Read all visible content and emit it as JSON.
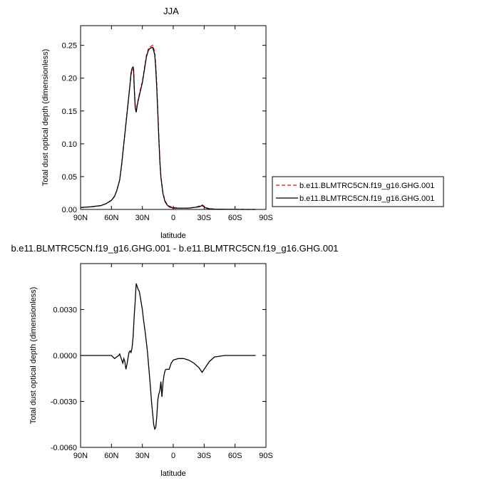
{
  "chart_data": [
    {
      "type": "line",
      "title": "JJA",
      "xlabel": "latitude",
      "ylabel": "Total dust optical depth (dimensionless)",
      "xlim": [
        90,
        -90
      ],
      "ylim": [
        0,
        0.28
      ],
      "xticks": [
        "90N",
        "60N",
        "30N",
        "0",
        "30S",
        "60S",
        "90S"
      ],
      "xtick_values": [
        90,
        60,
        30,
        0,
        -30,
        -60,
        -90
      ],
      "yticks": [
        "0.00",
        "0.05",
        "0.10",
        "0.15",
        "0.20",
        "0.25"
      ],
      "ytick_values": [
        0,
        0.05,
        0.1,
        0.15,
        0.2,
        0.25
      ],
      "legend_position": "right",
      "series": [
        {
          "name": "b.e11.BLMTRC5CN.f19_g16.GHG.001",
          "color": "#ff0000",
          "dash": "dashed",
          "x": [
            90,
            80,
            70,
            65,
            60,
            57,
            55,
            52,
            50,
            48,
            46,
            44,
            42,
            41,
            40,
            39,
            38.5,
            38,
            37,
            36,
            35,
            34,
            33,
            32,
            30,
            28,
            26,
            24,
            22,
            20,
            18,
            17,
            16,
            15,
            14,
            13,
            12,
            10,
            8,
            6,
            4,
            2,
            0,
            -5,
            -10,
            -15,
            -20,
            -25,
            -28,
            -30,
            -32,
            -35,
            -40,
            -50,
            -60,
            -70,
            -80
          ],
          "y": [
            0.003,
            0.004,
            0.006,
            0.009,
            0.014,
            0.02,
            0.028,
            0.045,
            0.07,
            0.1,
            0.13,
            0.16,
            0.19,
            0.205,
            0.212,
            0.213,
            0.21,
            0.19,
            0.16,
            0.15,
            0.16,
            0.168,
            0.175,
            0.182,
            0.195,
            0.215,
            0.235,
            0.245,
            0.248,
            0.25,
            0.24,
            0.22,
            0.19,
            0.15,
            0.11,
            0.075,
            0.05,
            0.025,
            0.013,
            0.008,
            0.005,
            0.004,
            0.003,
            0.002,
            0.002,
            0.002,
            0.003,
            0.005,
            0.007,
            0.005,
            0.003,
            0.001,
            0.0005,
            0.0002,
            0.0001,
            0.0,
            0.0
          ]
        },
        {
          "name": "b.e11.BLMTRC5CN.f19_g16.GHG.001",
          "color": "#000000",
          "dash": "solid",
          "x": [
            90,
            80,
            70,
            65,
            60,
            57,
            55,
            52,
            50,
            48,
            46,
            44,
            42,
            41,
            40,
            39,
            38.5,
            38,
            37,
            36,
            35,
            34,
            33,
            32,
            30,
            28,
            26,
            24,
            22,
            20,
            18,
            17,
            16,
            15,
            14,
            13,
            12,
            10,
            8,
            6,
            4,
            2,
            0,
            -5,
            -10,
            -15,
            -20,
            -25,
            -28,
            -30,
            -32,
            -35,
            -40,
            -50,
            -60,
            -70,
            -80
          ],
          "y": [
            0.003,
            0.004,
            0.006,
            0.009,
            0.014,
            0.02,
            0.028,
            0.045,
            0.07,
            0.1,
            0.13,
            0.16,
            0.19,
            0.208,
            0.215,
            0.217,
            0.213,
            0.19,
            0.156,
            0.148,
            0.158,
            0.166,
            0.173,
            0.18,
            0.193,
            0.213,
            0.233,
            0.243,
            0.246,
            0.247,
            0.236,
            0.215,
            0.185,
            0.147,
            0.108,
            0.073,
            0.049,
            0.024,
            0.012,
            0.007,
            0.004,
            0.003,
            0.002,
            0.002,
            0.002,
            0.002,
            0.003,
            0.004,
            0.006,
            0.004,
            0.002,
            0.001,
            0.0005,
            0.0002,
            0.0001,
            0.0,
            0.0
          ]
        }
      ]
    },
    {
      "type": "line",
      "title": "b.e11.BLMTRC5CN.f19_g16.GHG.001 - b.e11.BLMTRC5CN.f19_g16.GHG.001",
      "xlabel": "latitude",
      "ylabel": "Total dust optical depth (dimensionless)",
      "xlim": [
        90,
        -90
      ],
      "ylim": [
        -0.006,
        0.006
      ],
      "xticks": [
        "90N",
        "60N",
        "30N",
        "0",
        "30S",
        "60S",
        "90S"
      ],
      "xtick_values": [
        90,
        60,
        30,
        0,
        -30,
        -60,
        -90
      ],
      "yticks": [
        "-0.0060",
        "-0.0030",
        "0.0000",
        "0.0030"
      ],
      "ytick_values": [
        -0.006,
        -0.003,
        0.0,
        0.003
      ],
      "series": [
        {
          "name": "",
          "color": "#000000",
          "dash": "solid",
          "x": [
            90,
            80,
            70,
            65,
            62,
            60,
            57,
            55,
            53,
            52,
            51,
            50,
            49,
            48,
            47,
            46,
            45,
            44,
            43,
            42,
            41,
            40,
            39,
            38,
            37,
            36,
            35,
            34,
            33,
            32,
            31,
            30,
            29,
            28,
            27,
            26,
            25,
            24,
            23,
            22,
            21,
            20,
            19,
            18,
            17,
            16,
            15,
            14,
            13,
            12,
            11,
            10,
            9,
            8,
            7,
            6,
            5,
            4,
            3,
            2,
            0,
            -5,
            -10,
            -15,
            -20,
            -25,
            -27,
            -28,
            -30,
            -35,
            -40,
            -50,
            -60,
            -70,
            -80
          ],
          "y": [
            0.0,
            0.0,
            0.0,
            0.0,
            0.0,
            0.0,
            -0.0002,
            -0.0001,
            0.0,
            0.0001,
            -0.0001,
            -0.0003,
            -0.0005,
            -0.0002,
            -0.0004,
            -0.0009,
            -0.0006,
            -0.0002,
            0.0002,
            0.0003,
            0.0002,
            0.0005,
            0.0012,
            0.0025,
            0.0035,
            0.0047,
            0.0045,
            0.0043,
            0.0042,
            0.0038,
            0.0034,
            0.003,
            0.0024,
            0.0019,
            0.0014,
            0.0008,
            0.0002,
            -0.0006,
            -0.0014,
            -0.0022,
            -0.0031,
            -0.0038,
            -0.0045,
            -0.0048,
            -0.0047,
            -0.004,
            -0.0029,
            -0.0025,
            -0.0023,
            -0.0017,
            -0.0027,
            -0.0018,
            -0.0013,
            -0.001,
            -0.0009,
            -0.0009,
            -0.0009,
            -0.0009,
            -0.0007,
            -0.0005,
            -0.0003,
            -0.0002,
            -0.0002,
            -0.0003,
            -0.0005,
            -0.0008,
            -0.001,
            -0.0011,
            -0.0009,
            -0.0004,
            -0.0001,
            0.0,
            0.0,
            0.0,
            0.0
          ]
        }
      ]
    }
  ]
}
